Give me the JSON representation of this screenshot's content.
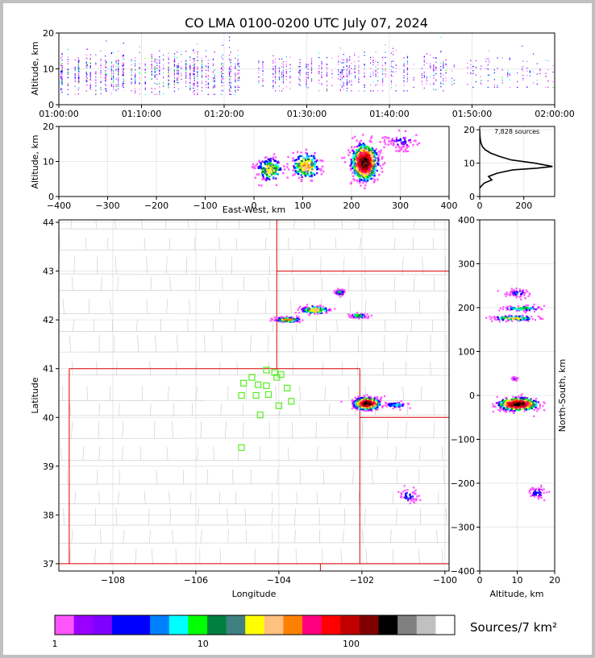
{
  "title": "CO LMA 0100-0200 UTC July 07, 2024",
  "chart_data": [
    {
      "id": "time-altitude",
      "type": "scatter",
      "ylabel": "Altitude, km",
      "xlim": [
        "01:00:00",
        "02:00:00"
      ],
      "xticks": [
        "01:00:00",
        "01:10:00",
        "01:20:00",
        "01:30:00",
        "01:40:00",
        "01:50:00",
        "02:00:00"
      ],
      "ylim": [
        0,
        20
      ],
      "yticks": [
        0,
        10,
        20
      ],
      "grid": true,
      "activity": [
        {
          "t_min": 0,
          "t_max": 22,
          "alt_min": 3,
          "alt_max": 19,
          "density": "high"
        },
        {
          "t_min": 24,
          "t_max": 36,
          "alt_min": 4,
          "alt_max": 17,
          "density": "medium"
        },
        {
          "t_min": 34,
          "t_max": 47,
          "alt_min": 4,
          "alt_max": 20,
          "density": "medium"
        },
        {
          "t_min": 47,
          "t_max": 60,
          "alt_min": 5,
          "alt_max": 20,
          "density": "low"
        }
      ]
    },
    {
      "id": "east-west-altitude",
      "type": "heatmap",
      "xlabel": "East-West, km",
      "ylabel": "Altitude, km",
      "xlim": [
        -400,
        400
      ],
      "xticks": [
        -400,
        -300,
        -200,
        -100,
        0,
        100,
        200,
        300,
        400
      ],
      "ylim": [
        0,
        20
      ],
      "yticks": [
        0,
        10,
        20
      ],
      "grid": true,
      "clusters": [
        {
          "x": 30,
          "x_spread": 28,
          "alt": 8,
          "alt_spread": 3.5,
          "peak": 30
        },
        {
          "x": 105,
          "x_spread": 30,
          "alt": 9,
          "alt_spread": 4,
          "peak": 40
        },
        {
          "x": 225,
          "x_spread": 25,
          "alt": 10,
          "alt_spread": 5,
          "peak": 200
        },
        {
          "x": 300,
          "x_spread": 40,
          "alt": 16,
          "alt_spread": 3,
          "peak": 3
        }
      ]
    },
    {
      "id": "altitude-histogram",
      "type": "line",
      "label": "7,828 sources",
      "xlim": [
        0,
        340
      ],
      "xticks": [
        0,
        200
      ],
      "ylim": [
        0,
        21
      ],
      "yticks": [
        0,
        10,
        20
      ],
      "grid": true,
      "x": [
        0,
        5,
        20,
        55,
        40,
        80,
        150,
        260,
        330,
        250,
        140,
        90,
        50,
        25,
        12,
        6,
        3,
        1,
        0
      ],
      "y": [
        2.5,
        3,
        4,
        5,
        6,
        7,
        8,
        8.5,
        9,
        10,
        11,
        12,
        13,
        14,
        15,
        16,
        17,
        18,
        20
      ]
    },
    {
      "id": "plan-view",
      "type": "heatmap",
      "xlabel": "Longitude",
      "ylabel": "Latitude",
      "xlim": [
        -109.3,
        -99.9
      ],
      "xticks": [
        -108,
        -106,
        -104,
        -102,
        -100
      ],
      "ylim": [
        36.85,
        44.05
      ],
      "yticks": [
        37,
        38,
        39,
        40,
        41,
        42,
        43,
        44
      ],
      "grid": true,
      "clusters": [
        {
          "lon": -101.9,
          "lat": 40.3,
          "lon_spread": 0.3,
          "lat_spread": 0.12,
          "peak": 200
        },
        {
          "lon": -101.2,
          "lat": 40.27,
          "lon_spread": 0.3,
          "lat_spread": 0.06,
          "peak": 10
        },
        {
          "lon": -103.8,
          "lat": 42.02,
          "lon_spread": 0.3,
          "lat_spread": 0.05,
          "peak": 60
        },
        {
          "lon": -102.55,
          "lat": 42.58,
          "lon_spread": 0.12,
          "lat_spread": 0.06,
          "peak": 15
        },
        {
          "lon": -103.15,
          "lat": 42.22,
          "lon_spread": 0.35,
          "lat_spread": 0.08,
          "peak": 40
        },
        {
          "lon": -102.1,
          "lat": 42.1,
          "lon_spread": 0.2,
          "lat_spread": 0.05,
          "peak": 20
        },
        {
          "lon": -100.9,
          "lat": 38.4,
          "lon_spread": 0.25,
          "lat_spread": 0.15,
          "peak": 5
        }
      ],
      "stations": [
        {
          "lon": -104.3,
          "lat": 40.97
        },
        {
          "lon": -104.1,
          "lat": 40.92
        },
        {
          "lon": -103.95,
          "lat": 40.88
        },
        {
          "lon": -104.65,
          "lat": 40.82
        },
        {
          "lon": -104.05,
          "lat": 40.82
        },
        {
          "lon": -104.85,
          "lat": 40.7
        },
        {
          "lon": -104.5,
          "lat": 40.67
        },
        {
          "lon": -104.3,
          "lat": 40.65
        },
        {
          "lon": -103.8,
          "lat": 40.6
        },
        {
          "lon": -104.9,
          "lat": 40.45
        },
        {
          "lon": -104.55,
          "lat": 40.45
        },
        {
          "lon": -104.25,
          "lat": 40.47
        },
        {
          "lon": -103.7,
          "lat": 40.33
        },
        {
          "lon": -104.0,
          "lat": 40.24
        },
        {
          "lon": -104.45,
          "lat": 40.05
        },
        {
          "lon": -104.9,
          "lat": 39.38
        }
      ]
    },
    {
      "id": "altitude-north-south",
      "type": "heatmap",
      "xlabel": "Altitude, km",
      "ylabel": "North-South, km",
      "xlim": [
        0,
        20
      ],
      "xticks": [
        0,
        10,
        20
      ],
      "ylim": [
        -400,
        400
      ],
      "yticks": [
        -400,
        -300,
        -200,
        -100,
        0,
        100,
        200,
        300,
        400
      ],
      "grid": true,
      "clusters": [
        {
          "alt": 10,
          "alt_spread": 5,
          "y": -18,
          "y_spread": 14,
          "peak": 200
        },
        {
          "alt": 11,
          "alt_spread": 6,
          "y": 200,
          "y_spread": 6,
          "peak": 15
        },
        {
          "alt": 9,
          "alt_spread": 6,
          "y": 178,
          "y_spread": 6,
          "peak": 30
        },
        {
          "alt": 10,
          "alt_spread": 3,
          "y": 235,
          "y_spread": 10,
          "peak": 5
        },
        {
          "alt": 15,
          "alt_spread": 3,
          "y": -220,
          "y_spread": 15,
          "peak": 4
        },
        {
          "alt": 9,
          "alt_spread": 0.8,
          "y": 40,
          "y_spread": 4,
          "peak": 4
        }
      ]
    },
    {
      "id": "colorbar",
      "type": "table",
      "label": "Sources/7 km²",
      "scale": "log",
      "ticks": [
        "1",
        "10",
        "100"
      ],
      "colors": [
        "#ff55ff",
        "#9900ff",
        "#7f00ff",
        "#0000ff",
        "#0000ff",
        "#0080ff",
        "#00ffff",
        "#00ff00",
        "#008040",
        "#408080",
        "#ffff00",
        "#ffc080",
        "#ff8000",
        "#ff0080",
        "#ff0000",
        "#c00000",
        "#800000",
        "#000000",
        "#808080",
        "#c0c0c0",
        "#ffffff"
      ]
    }
  ]
}
